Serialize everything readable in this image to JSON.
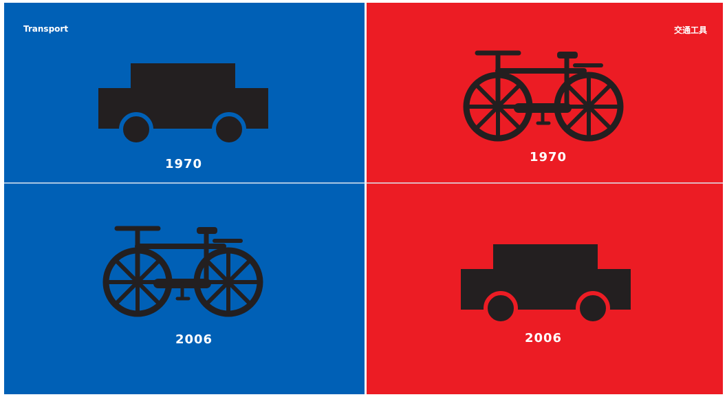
{
  "left": {
    "title": "Transport",
    "panels": [
      {
        "year": "1970"
      },
      {
        "year": "2006"
      }
    ]
  },
  "right": {
    "title": "交通工具",
    "panels": [
      {
        "year": "1970"
      },
      {
        "year": "2006"
      }
    ]
  }
}
